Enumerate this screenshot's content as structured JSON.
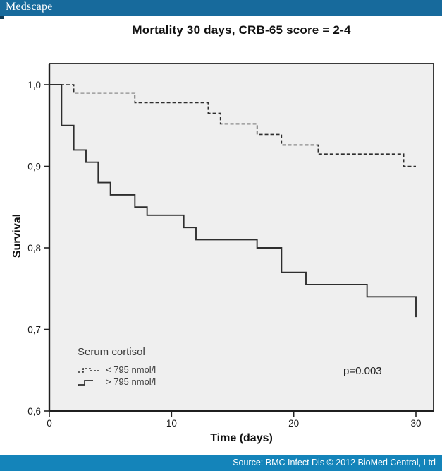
{
  "header": {
    "brand": "Medscape"
  },
  "footer": {
    "source": "Source: BMC Infect Dis © 2012 BioMed Central, Ltd"
  },
  "colors": {
    "header_bg": "#176a9c",
    "header_notch": "#0e3a55",
    "footer_bg": "#1484ba",
    "plot_bg": "#efefef",
    "frame": "#3a3a3a",
    "curve": "#2e2e2e",
    "tick": "#222222",
    "tick_text": "#1a1a1a"
  },
  "chart_data": {
    "type": "line",
    "subtype": "kaplan-meier-step",
    "title": "Mortality 30 days, CRB-65 score = 2-4",
    "xlabel": "Time (days)",
    "ylabel": "Survival",
    "xlim": [
      0,
      30
    ],
    "ylim": [
      0.6,
      1.0
    ],
    "x_ticks": [
      0,
      10,
      20,
      30
    ],
    "x_tick_labels": [
      "0",
      "10",
      "20",
      "30"
    ],
    "y_ticks": [
      1.0,
      0.9,
      0.8,
      0.7,
      0.6
    ],
    "y_tick_labels": [
      "1,0",
      "0,9",
      "0,8",
      "0,7",
      "0,6"
    ],
    "grid": false,
    "legend_title": "Serum cortisol",
    "legend_position": "lower-left-inside",
    "annotation": "p=0.003",
    "series": [
      {
        "name": "< 795 nmol/l",
        "style": "dashed",
        "points": [
          [
            0,
            1.0
          ],
          [
            2,
            0.99
          ],
          [
            7,
            0.978
          ],
          [
            13,
            0.965
          ],
          [
            14,
            0.952
          ],
          [
            17,
            0.939
          ],
          [
            19,
            0.926
          ],
          [
            22,
            0.915
          ],
          [
            29,
            0.9
          ],
          [
            30,
            0.9
          ]
        ]
      },
      {
        "name": "> 795 nmol/l",
        "style": "solid",
        "points": [
          [
            0,
            1.0
          ],
          [
            1,
            0.95
          ],
          [
            2,
            0.92
          ],
          [
            3,
            0.905
          ],
          [
            4,
            0.88
          ],
          [
            5,
            0.865
          ],
          [
            7,
            0.85
          ],
          [
            8,
            0.84
          ],
          [
            11,
            0.825
          ],
          [
            12,
            0.81
          ],
          [
            17,
            0.8
          ],
          [
            19,
            0.77
          ],
          [
            21,
            0.755
          ],
          [
            26,
            0.74
          ],
          [
            30,
            0.715
          ]
        ]
      }
    ]
  }
}
